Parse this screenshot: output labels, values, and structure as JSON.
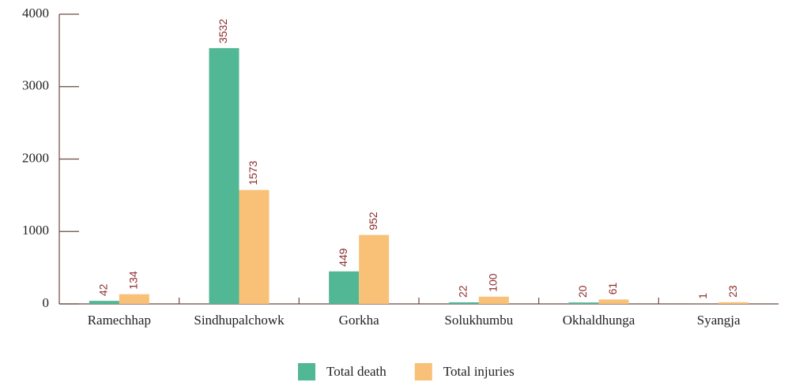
{
  "chart_data": {
    "type": "bar",
    "categories": [
      "Ramechhap",
      "Sindhupalchowk",
      "Gorkha",
      "Solukhumbu",
      "Okhaldhunga",
      "Syangja"
    ],
    "series": [
      {
        "name": "Total death",
        "color": "#52b795",
        "values": [
          42,
          3532,
          449,
          22,
          20,
          1
        ]
      },
      {
        "name": "Total injuries",
        "color": "#f9c077",
        "values": [
          134,
          1573,
          952,
          100,
          61,
          23
        ]
      }
    ],
    "ylim": [
      0,
      4000
    ],
    "yticks": [
      0,
      1000,
      2000,
      3000,
      4000
    ],
    "legend": "bottom"
  }
}
